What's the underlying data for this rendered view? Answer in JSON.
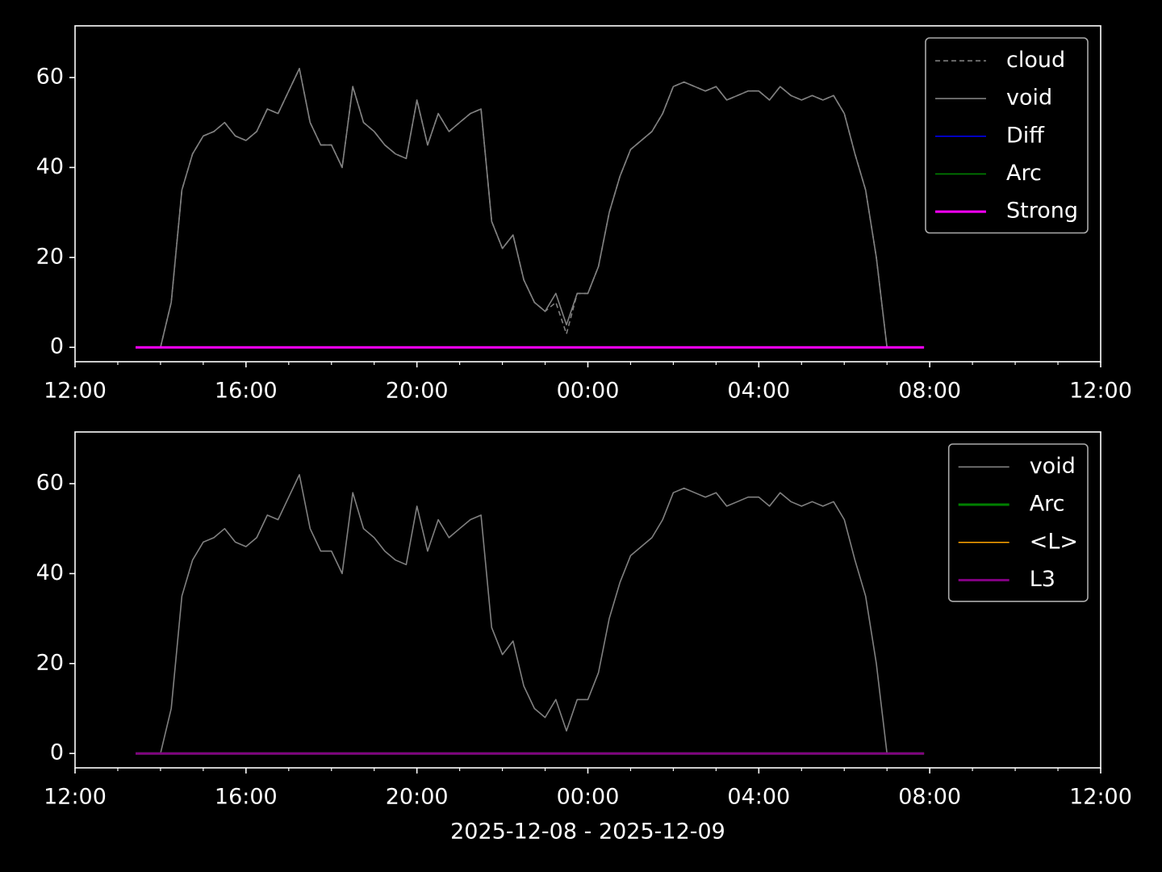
{
  "chart_data": [
    {
      "type": "line",
      "x": [
        "2025-12-08 13:30",
        "2025-12-08 13:45",
        "2025-12-08 14:00",
        "2025-12-08 14:15",
        "2025-12-08 14:30",
        "2025-12-08 14:45",
        "2025-12-08 15:00",
        "2025-12-08 15:15",
        "2025-12-08 15:30",
        "2025-12-08 15:45",
        "2025-12-08 16:00",
        "2025-12-08 16:15",
        "2025-12-08 16:30",
        "2025-12-08 16:45",
        "2025-12-08 17:00",
        "2025-12-08 17:15",
        "2025-12-08 17:30",
        "2025-12-08 17:45",
        "2025-12-08 18:00",
        "2025-12-08 18:15",
        "2025-12-08 18:30",
        "2025-12-08 18:45",
        "2025-12-08 19:00",
        "2025-12-08 19:15",
        "2025-12-08 19:30",
        "2025-12-08 19:45",
        "2025-12-08 20:00",
        "2025-12-08 20:15",
        "2025-12-08 20:30",
        "2025-12-08 20:45",
        "2025-12-08 21:00",
        "2025-12-08 21:15",
        "2025-12-08 21:30",
        "2025-12-08 21:45",
        "2025-12-08 22:00",
        "2025-12-08 22:15",
        "2025-12-08 22:30",
        "2025-12-08 22:45",
        "2025-12-08 23:00",
        "2025-12-08 23:15",
        "2025-12-08 23:30",
        "2025-12-08 23:45",
        "2025-12-09 00:00",
        "2025-12-09 00:15",
        "2025-12-09 00:30",
        "2025-12-09 00:45",
        "2025-12-09 01:00",
        "2025-12-09 01:15",
        "2025-12-09 01:30",
        "2025-12-09 01:45",
        "2025-12-09 02:00",
        "2025-12-09 02:15",
        "2025-12-09 02:30",
        "2025-12-09 02:45",
        "2025-12-09 03:00",
        "2025-12-09 03:15",
        "2025-12-09 03:30",
        "2025-12-09 03:45",
        "2025-12-09 04:00",
        "2025-12-09 04:15",
        "2025-12-09 04:30",
        "2025-12-09 04:45",
        "2025-12-09 05:00",
        "2025-12-09 05:15",
        "2025-12-09 05:30",
        "2025-12-09 05:45",
        "2025-12-09 06:00",
        "2025-12-09 06:15",
        "2025-12-09 06:30",
        "2025-12-09 06:45",
        "2025-12-09 07:00",
        "2025-12-09 07:15",
        "2025-12-09 07:30",
        "2025-12-09 07:45"
      ],
      "xlim": [
        "2025-12-08 12:00",
        "2025-12-09 12:00"
      ],
      "xticks": [
        {
          "value": "2025-12-08 12:00",
          "label": "12:00"
        },
        {
          "value": "2025-12-08 16:00",
          "label": "16:00"
        },
        {
          "value": "2025-12-08 20:00",
          "label": "20:00"
        },
        {
          "value": "2025-12-09 00:00",
          "label": "00:00"
        },
        {
          "value": "2025-12-09 04:00",
          "label": "04:00"
        },
        {
          "value": "2025-12-09 08:00",
          "label": "08:00"
        },
        {
          "value": "2025-12-09 12:00",
          "label": "12:00"
        }
      ],
      "xminorticks": [
        "2025-12-08 13:00",
        "2025-12-08 14:00",
        "2025-12-08 15:00",
        "2025-12-08 17:00",
        "2025-12-08 18:00",
        "2025-12-08 19:00",
        "2025-12-08 21:00",
        "2025-12-08 22:00",
        "2025-12-08 23:00",
        "2025-12-09 01:00",
        "2025-12-09 02:00",
        "2025-12-09 03:00",
        "2025-12-09 05:00",
        "2025-12-09 06:00",
        "2025-12-09 07:00",
        "2025-12-09 09:00",
        "2025-12-09 10:00",
        "2025-12-09 11:00"
      ],
      "ylim": [
        -3.2,
        71.5
      ],
      "yticks": [
        0,
        20,
        40,
        60
      ],
      "legend": "upper right",
      "series": [
        {
          "name": "cloud",
          "color": "#808080",
          "linestyle": "dashed",
          "values": [
            null,
            null,
            0,
            10,
            35,
            43,
            47,
            48,
            50,
            47,
            46,
            48,
            53,
            52,
            57,
            62,
            50,
            45,
            45,
            40,
            58,
            50,
            48,
            45,
            43,
            42,
            55,
            45,
            52,
            48,
            50,
            52,
            53,
            28,
            22,
            25,
            15,
            10,
            8,
            10,
            3,
            12,
            12,
            18,
            30,
            38,
            44,
            46,
            48,
            52,
            58,
            59,
            58,
            57,
            58,
            55,
            56,
            57,
            57,
            55,
            58,
            56,
            55,
            56,
            55,
            56,
            52,
            43,
            35,
            20,
            0,
            null,
            null,
            null
          ]
        },
        {
          "name": "void",
          "color": "#808080",
          "values": [
            null,
            null,
            0,
            10,
            35,
            43,
            47,
            48,
            50,
            47,
            46,
            48,
            53,
            52,
            57,
            62,
            50,
            45,
            45,
            40,
            58,
            50,
            48,
            45,
            43,
            42,
            55,
            45,
            52,
            48,
            50,
            52,
            53,
            28,
            22,
            25,
            15,
            10,
            8,
            12,
            5,
            12,
            12,
            18,
            30,
            38,
            44,
            46,
            48,
            52,
            58,
            59,
            58,
            57,
            58,
            55,
            56,
            57,
            57,
            55,
            58,
            56,
            55,
            56,
            55,
            56,
            52,
            43,
            35,
            20,
            0,
            null,
            null,
            null
          ]
        },
        {
          "name": "Diff",
          "color": "#0000ff",
          "x": [
            "2025-12-08 13:25",
            "2025-12-09 07:52"
          ],
          "values": [
            0,
            0
          ]
        },
        {
          "name": "Arc",
          "color": "#008000",
          "x": [
            "2025-12-08 13:25",
            "2025-12-09 07:52"
          ],
          "values": [
            0,
            0
          ]
        },
        {
          "name": "Strong",
          "color": "#ff00ff",
          "linewidth": 3,
          "x": [
            "2025-12-08 13:25",
            "2025-12-09 07:52"
          ],
          "values": [
            0,
            0
          ]
        }
      ]
    },
    {
      "type": "line",
      "x": [
        "2025-12-08 13:30",
        "2025-12-08 13:45",
        "2025-12-08 14:00",
        "2025-12-08 14:15",
        "2025-12-08 14:30",
        "2025-12-08 14:45",
        "2025-12-08 15:00",
        "2025-12-08 15:15",
        "2025-12-08 15:30",
        "2025-12-08 15:45",
        "2025-12-08 16:00",
        "2025-12-08 16:15",
        "2025-12-08 16:30",
        "2025-12-08 16:45",
        "2025-12-08 17:00",
        "2025-12-08 17:15",
        "2025-12-08 17:30",
        "2025-12-08 17:45",
        "2025-12-08 18:00",
        "2025-12-08 18:15",
        "2025-12-08 18:30",
        "2025-12-08 18:45",
        "2025-12-08 19:00",
        "2025-12-08 19:15",
        "2025-12-08 19:30",
        "2025-12-08 19:45",
        "2025-12-08 20:00",
        "2025-12-08 20:15",
        "2025-12-08 20:30",
        "2025-12-08 20:45",
        "2025-12-08 21:00",
        "2025-12-08 21:15",
        "2025-12-08 21:30",
        "2025-12-08 21:45",
        "2025-12-08 22:00",
        "2025-12-08 22:15",
        "2025-12-08 22:30",
        "2025-12-08 22:45",
        "2025-12-08 23:00",
        "2025-12-08 23:15",
        "2025-12-08 23:30",
        "2025-12-08 23:45",
        "2025-12-09 00:00",
        "2025-12-09 00:15",
        "2025-12-09 00:30",
        "2025-12-09 00:45",
        "2025-12-09 01:00",
        "2025-12-09 01:15",
        "2025-12-09 01:30",
        "2025-12-09 01:45",
        "2025-12-09 02:00",
        "2025-12-09 02:15",
        "2025-12-09 02:30",
        "2025-12-09 02:45",
        "2025-12-09 03:00",
        "2025-12-09 03:15",
        "2025-12-09 03:30",
        "2025-12-09 03:45",
        "2025-12-09 04:00",
        "2025-12-09 04:15",
        "2025-12-09 04:30",
        "2025-12-09 04:45",
        "2025-12-09 05:00",
        "2025-12-09 05:15",
        "2025-12-09 05:30",
        "2025-12-09 05:45",
        "2025-12-09 06:00",
        "2025-12-09 06:15",
        "2025-12-09 06:30",
        "2025-12-09 06:45",
        "2025-12-09 07:00",
        "2025-12-09 07:15",
        "2025-12-09 07:30",
        "2025-12-09 07:45"
      ],
      "xlim": [
        "2025-12-08 12:00",
        "2025-12-09 12:00"
      ],
      "xticks": [
        {
          "value": "2025-12-08 12:00",
          "label": "12:00"
        },
        {
          "value": "2025-12-08 16:00",
          "label": "16:00"
        },
        {
          "value": "2025-12-08 20:00",
          "label": "20:00"
        },
        {
          "value": "2025-12-09 00:00",
          "label": "00:00"
        },
        {
          "value": "2025-12-09 04:00",
          "label": "04:00"
        },
        {
          "value": "2025-12-09 08:00",
          "label": "08:00"
        },
        {
          "value": "2025-12-09 12:00",
          "label": "12:00"
        }
      ],
      "xminorticks": [
        "2025-12-08 13:00",
        "2025-12-08 14:00",
        "2025-12-08 15:00",
        "2025-12-08 17:00",
        "2025-12-08 18:00",
        "2025-12-08 19:00",
        "2025-12-08 21:00",
        "2025-12-08 22:00",
        "2025-12-08 23:00",
        "2025-12-09 01:00",
        "2025-12-09 02:00",
        "2025-12-09 03:00",
        "2025-12-09 05:00",
        "2025-12-09 06:00",
        "2025-12-09 07:00",
        "2025-12-09 09:00",
        "2025-12-09 10:00",
        "2025-12-09 11:00"
      ],
      "xlabel": "2025-12-08 - 2025-12-09",
      "ylim": [
        -3.2,
        71.5
      ],
      "yticks": [
        0,
        20,
        40,
        60
      ],
      "legend": "upper right",
      "series": [
        {
          "name": "void",
          "color": "#808080",
          "values": [
            null,
            null,
            0,
            10,
            35,
            43,
            47,
            48,
            50,
            47,
            46,
            48,
            53,
            52,
            57,
            62,
            50,
            45,
            45,
            40,
            58,
            50,
            48,
            45,
            43,
            42,
            55,
            45,
            52,
            48,
            50,
            52,
            53,
            28,
            22,
            25,
            15,
            10,
            8,
            12,
            5,
            12,
            12,
            18,
            30,
            38,
            44,
            46,
            48,
            52,
            58,
            59,
            58,
            57,
            58,
            55,
            56,
            57,
            57,
            55,
            58,
            56,
            55,
            56,
            55,
            56,
            52,
            43,
            35,
            20,
            0,
            null,
            null,
            null
          ]
        },
        {
          "name": "Arc",
          "color": "#008000",
          "linewidth": 3,
          "x": [
            "2025-12-08 13:25",
            "2025-12-09 07:52"
          ],
          "values": [
            0,
            0
          ]
        },
        {
          "name": "<L>",
          "color": "#ffa500",
          "x": [
            "2025-12-08 13:25",
            "2025-12-09 07:52"
          ],
          "values": [
            0,
            0
          ]
        },
        {
          "name": "L3",
          "color": "#800080",
          "linewidth": 3,
          "x": [
            "2025-12-08 13:25",
            "2025-12-09 07:52"
          ],
          "values": [
            0,
            0
          ]
        }
      ]
    }
  ]
}
